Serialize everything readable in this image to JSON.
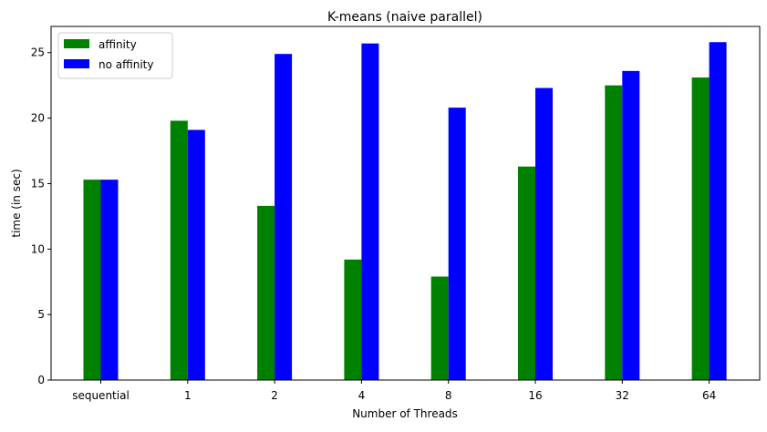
{
  "chart_data": {
    "type": "bar",
    "title": "K-means (naive parallel)",
    "xlabel": "Number of Threads",
    "ylabel": "time (in sec)",
    "categories": [
      "sequential",
      "1",
      "2",
      "4",
      "8",
      "16",
      "32",
      "64"
    ],
    "series": [
      {
        "name": "affinity",
        "color": "#008000",
        "values": [
          15.3,
          19.8,
          13.3,
          9.2,
          7.9,
          16.3,
          22.5,
          23.1
        ]
      },
      {
        "name": "no affinity",
        "color": "#0000ff",
        "values": [
          15.3,
          19.1,
          24.9,
          25.7,
          20.8,
          22.3,
          23.6,
          25.8
        ]
      }
    ],
    "ylim": [
      0,
      27
    ],
    "yticks": [
      0,
      5,
      10,
      15,
      20,
      25
    ],
    "grid": false,
    "legend_position": "top-left"
  }
}
